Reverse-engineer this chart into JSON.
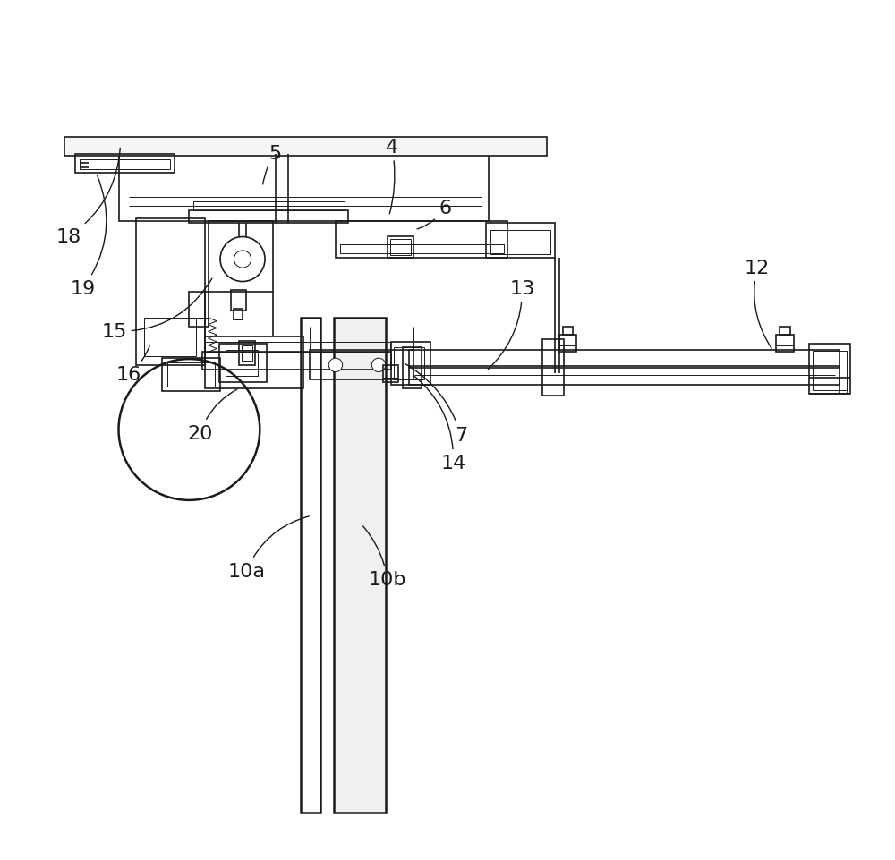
{
  "bg_color": "#ffffff",
  "line_color": "#1a1a1a",
  "line_width": 1.2,
  "thin_line": 0.7,
  "thick_line": 1.8,
  "figsize": [
    10.0,
    9.62
  ],
  "dpi": 100
}
